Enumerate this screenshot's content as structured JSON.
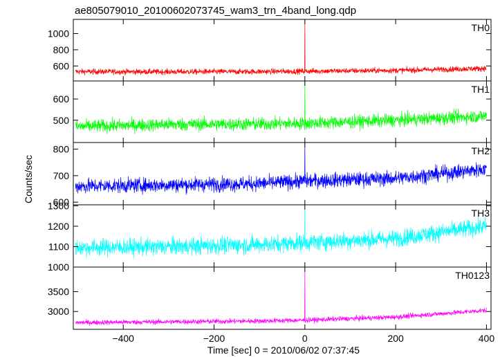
{
  "chart_data": {
    "type": "line",
    "title": "ae805079010_20100602073745_wam3_trn_4band_long.qdp",
    "xlabel": "Time [sec] 0 = 2010/06/02 07:37:45",
    "ylabel": "Counts/sec",
    "xlim": [
      -510,
      410
    ],
    "xticks": [
      -400,
      -200,
      0,
      200,
      400
    ],
    "xtick_labels": [
      "−400",
      "−200",
      "0",
      "200",
      "400"
    ],
    "panels": [
      {
        "name": "TH0",
        "color": "#ff0000",
        "ylim": [
          415,
          1175
        ],
        "yticks": [
          600,
          800,
          1000
        ],
        "ytick_labels": [
          "600",
          "800",
          "1000"
        ],
        "baseline": [
          [
            -505,
            530
          ],
          [
            -300,
            528
          ],
          [
            -100,
            530
          ],
          [
            0,
            535
          ],
          [
            200,
            545
          ],
          [
            400,
            570
          ]
        ],
        "noise": 25,
        "spike": {
          "x": 0,
          "value": 1175
        }
      },
      {
        "name": "TH1",
        "color": "#00ff00",
        "ylim": [
          395,
          685
        ],
        "yticks": [
          500,
          600
        ],
        "ytick_labels": [
          "500",
          "600"
        ],
        "baseline": [
          [
            -505,
            470
          ],
          [
            -300,
            480
          ],
          [
            -100,
            482
          ],
          [
            0,
            485
          ],
          [
            200,
            500
          ],
          [
            400,
            520
          ]
        ],
        "noise": 22,
        "spike": {
          "x": 0,
          "value": 685
        }
      },
      {
        "name": "TH2",
        "color": "#0000ff",
        "ylim": [
          590,
          825
        ],
        "yticks": [
          600,
          700,
          800
        ],
        "ytick_labels": [
          "600",
          "700",
          "800"
        ],
        "baseline": [
          [
            -505,
            660
          ],
          [
            -300,
            665
          ],
          [
            -100,
            670
          ],
          [
            0,
            680
          ],
          [
            200,
            690
          ],
          [
            400,
            725
          ]
        ],
        "noise": 20,
        "spike": {
          "x": 0,
          "value": 825
        }
      },
      {
        "name": "TH3",
        "color": "#00ffff",
        "ylim": [
          1000,
          1305
        ],
        "yticks": [
          1000,
          1100,
          1200,
          1300
        ],
        "ytick_labels": [
          "1000",
          "1100",
          "1200",
          "1300"
        ],
        "baseline": [
          [
            -505,
            1095
          ],
          [
            -300,
            1100
          ],
          [
            -100,
            1110
          ],
          [
            0,
            1120
          ],
          [
            200,
            1140
          ],
          [
            400,
            1200
          ]
        ],
        "noise": 30,
        "spike": {
          "x": 0,
          "value": 1305
        }
      },
      {
        "name": "TH0123",
        "color": "#ff00ff",
        "ylim": [
          2550,
          4120
        ],
        "yticks": [
          3000,
          3500
        ],
        "ytick_labels": [
          "3000",
          "3500"
        ],
        "baseline": [
          [
            -505,
            2720
          ],
          [
            -300,
            2740
          ],
          [
            -100,
            2760
          ],
          [
            0,
            2780
          ],
          [
            200,
            2860
          ],
          [
            400,
            3030
          ]
        ],
        "noise": 45,
        "spike": {
          "x": 0,
          "value": 4120
        }
      }
    ]
  }
}
